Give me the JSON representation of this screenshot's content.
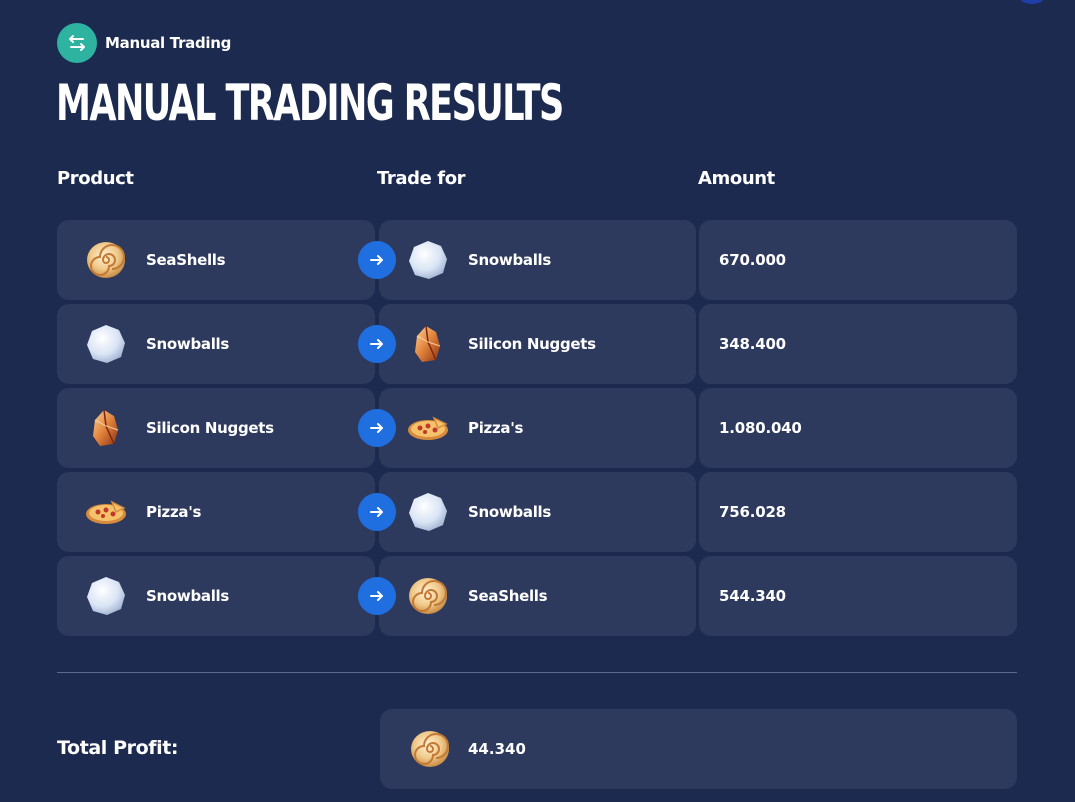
{
  "badge": {
    "label": "Manual Trading",
    "icon": "swap-arrows-icon"
  },
  "title": "MANUAL TRADING RESULTS",
  "columns": {
    "product": "Product",
    "trade_for": "Trade for",
    "amount": "Amount"
  },
  "rows": [
    {
      "product": "SeaShells",
      "product_icon": "seashell-icon",
      "trade_for": "Snowballs",
      "trade_icon": "snowball-icon",
      "amount": "670.000"
    },
    {
      "product": "Snowballs",
      "product_icon": "snowball-icon",
      "trade_for": "Silicon Nuggets",
      "trade_icon": "silicon-nugget-icon",
      "amount": "348.400"
    },
    {
      "product": "Silicon Nuggets",
      "product_icon": "silicon-nugget-icon",
      "trade_for": "Pizza's",
      "trade_icon": "pizza-icon",
      "amount": "1.080.040"
    },
    {
      "product": "Pizza's",
      "product_icon": "pizza-icon",
      "trade_for": "Snowballs",
      "trade_icon": "snowball-icon",
      "amount": "756.028"
    },
    {
      "product": "Snowballs",
      "product_icon": "snowball-icon",
      "trade_for": "SeaShells",
      "trade_icon": "seashell-icon",
      "amount": "544.340"
    }
  ],
  "total": {
    "label": "Total Profit:",
    "value": "44.340",
    "icon": "seashell-icon"
  },
  "colors": {
    "background": "#1b2a4e",
    "card": "#2d3a5e",
    "accent_blue": "#1f6fe0",
    "badge_teal": "#2eb3a0"
  }
}
